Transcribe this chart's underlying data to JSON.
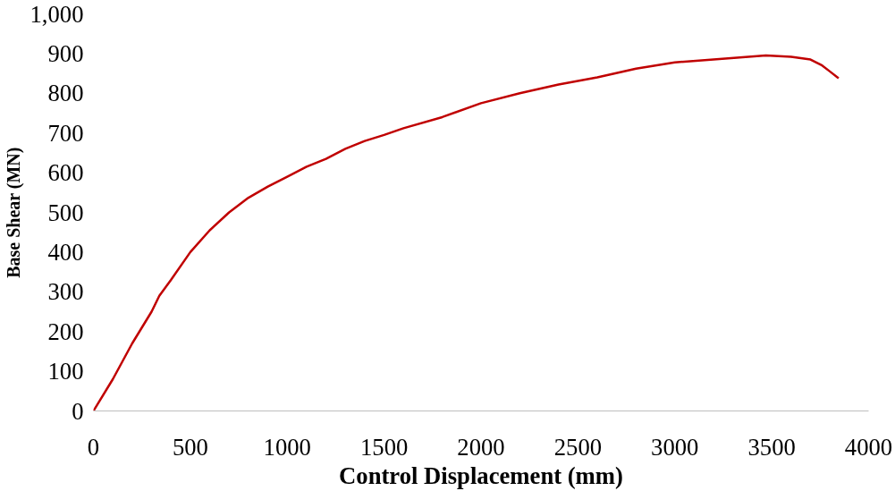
{
  "chart_data": {
    "type": "line",
    "xlabel": "Control Displacement (mm)",
    "ylabel": "Base Shear (MN)",
    "x": [
      0,
      100,
      200,
      300,
      340,
      400,
      500,
      600,
      700,
      800,
      900,
      1000,
      1100,
      1200,
      1300,
      1400,
      1500,
      1600,
      1800,
      2000,
      2200,
      2400,
      2600,
      2800,
      3000,
      3200,
      3470,
      3600,
      3700,
      3760,
      3800,
      3845
    ],
    "series": [
      {
        "color": "#c00000",
        "values": [
          0,
          80,
          170,
          250,
          290,
          330,
          400,
          455,
          500,
          537,
          565,
          590,
          615,
          635,
          660,
          680,
          695,
          712,
          740,
          775,
          800,
          822,
          840,
          862,
          878,
          885,
          895,
          892,
          885,
          870,
          855,
          838
        ]
      }
    ],
    "xlim": [
      0,
      4000
    ],
    "xticks": [
      0,
      500,
      1000,
      1500,
      2000,
      2500,
      3000,
      3500,
      4000
    ],
    "ylim": [
      0,
      1000
    ],
    "yticks": [
      0,
      100,
      200,
      300,
      400,
      500,
      600,
      700,
      800,
      900,
      {
        "value": 1000,
        "label": "1,000"
      }
    ],
    "grid": false,
    "marker": "none",
    "line_style": "solid"
  }
}
